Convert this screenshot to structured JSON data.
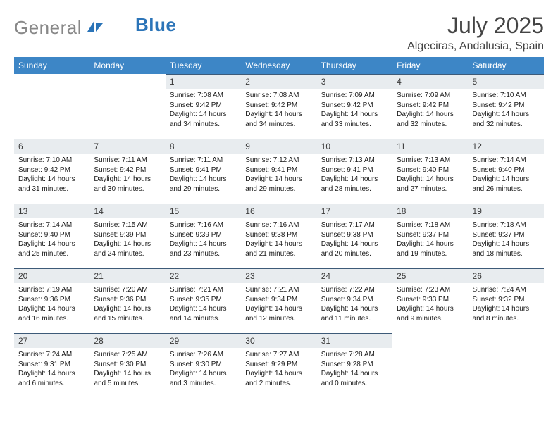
{
  "brand": {
    "gray": "General",
    "blue": "Blue"
  },
  "title": "July 2025",
  "location": "Algeciras, Andalusia, Spain",
  "colors": {
    "header_bg": "#3d86c6",
    "header_text": "#ffffff",
    "daynum_bg": "#e8ecef",
    "daynum_border": "#3d5a78",
    "logo_gray": "#888888",
    "logo_blue": "#2b74b8"
  },
  "weekdays": [
    "Sunday",
    "Monday",
    "Tuesday",
    "Wednesday",
    "Thursday",
    "Friday",
    "Saturday"
  ],
  "weeks": [
    [
      null,
      null,
      {
        "n": "1",
        "sr": "7:08 AM",
        "ss": "9:42 PM",
        "dl": "14 hours and 34 minutes."
      },
      {
        "n": "2",
        "sr": "7:08 AM",
        "ss": "9:42 PM",
        "dl": "14 hours and 34 minutes."
      },
      {
        "n": "3",
        "sr": "7:09 AM",
        "ss": "9:42 PM",
        "dl": "14 hours and 33 minutes."
      },
      {
        "n": "4",
        "sr": "7:09 AM",
        "ss": "9:42 PM",
        "dl": "14 hours and 32 minutes."
      },
      {
        "n": "5",
        "sr": "7:10 AM",
        "ss": "9:42 PM",
        "dl": "14 hours and 32 minutes."
      }
    ],
    [
      {
        "n": "6",
        "sr": "7:10 AM",
        "ss": "9:42 PM",
        "dl": "14 hours and 31 minutes."
      },
      {
        "n": "7",
        "sr": "7:11 AM",
        "ss": "9:42 PM",
        "dl": "14 hours and 30 minutes."
      },
      {
        "n": "8",
        "sr": "7:11 AM",
        "ss": "9:41 PM",
        "dl": "14 hours and 29 minutes."
      },
      {
        "n": "9",
        "sr": "7:12 AM",
        "ss": "9:41 PM",
        "dl": "14 hours and 29 minutes."
      },
      {
        "n": "10",
        "sr": "7:13 AM",
        "ss": "9:41 PM",
        "dl": "14 hours and 28 minutes."
      },
      {
        "n": "11",
        "sr": "7:13 AM",
        "ss": "9:40 PM",
        "dl": "14 hours and 27 minutes."
      },
      {
        "n": "12",
        "sr": "7:14 AM",
        "ss": "9:40 PM",
        "dl": "14 hours and 26 minutes."
      }
    ],
    [
      {
        "n": "13",
        "sr": "7:14 AM",
        "ss": "9:40 PM",
        "dl": "14 hours and 25 minutes."
      },
      {
        "n": "14",
        "sr": "7:15 AM",
        "ss": "9:39 PM",
        "dl": "14 hours and 24 minutes."
      },
      {
        "n": "15",
        "sr": "7:16 AM",
        "ss": "9:39 PM",
        "dl": "14 hours and 23 minutes."
      },
      {
        "n": "16",
        "sr": "7:16 AM",
        "ss": "9:38 PM",
        "dl": "14 hours and 21 minutes."
      },
      {
        "n": "17",
        "sr": "7:17 AM",
        "ss": "9:38 PM",
        "dl": "14 hours and 20 minutes."
      },
      {
        "n": "18",
        "sr": "7:18 AM",
        "ss": "9:37 PM",
        "dl": "14 hours and 19 minutes."
      },
      {
        "n": "19",
        "sr": "7:18 AM",
        "ss": "9:37 PM",
        "dl": "14 hours and 18 minutes."
      }
    ],
    [
      {
        "n": "20",
        "sr": "7:19 AM",
        "ss": "9:36 PM",
        "dl": "14 hours and 16 minutes."
      },
      {
        "n": "21",
        "sr": "7:20 AM",
        "ss": "9:36 PM",
        "dl": "14 hours and 15 minutes."
      },
      {
        "n": "22",
        "sr": "7:21 AM",
        "ss": "9:35 PM",
        "dl": "14 hours and 14 minutes."
      },
      {
        "n": "23",
        "sr": "7:21 AM",
        "ss": "9:34 PM",
        "dl": "14 hours and 12 minutes."
      },
      {
        "n": "24",
        "sr": "7:22 AM",
        "ss": "9:34 PM",
        "dl": "14 hours and 11 minutes."
      },
      {
        "n": "25",
        "sr": "7:23 AM",
        "ss": "9:33 PM",
        "dl": "14 hours and 9 minutes."
      },
      {
        "n": "26",
        "sr": "7:24 AM",
        "ss": "9:32 PM",
        "dl": "14 hours and 8 minutes."
      }
    ],
    [
      {
        "n": "27",
        "sr": "7:24 AM",
        "ss": "9:31 PM",
        "dl": "14 hours and 6 minutes."
      },
      {
        "n": "28",
        "sr": "7:25 AM",
        "ss": "9:30 PM",
        "dl": "14 hours and 5 minutes."
      },
      {
        "n": "29",
        "sr": "7:26 AM",
        "ss": "9:30 PM",
        "dl": "14 hours and 3 minutes."
      },
      {
        "n": "30",
        "sr": "7:27 AM",
        "ss": "9:29 PM",
        "dl": "14 hours and 2 minutes."
      },
      {
        "n": "31",
        "sr": "7:28 AM",
        "ss": "9:28 PM",
        "dl": "14 hours and 0 minutes."
      },
      null,
      null
    ]
  ],
  "labels": {
    "sunrise": "Sunrise:",
    "sunset": "Sunset:",
    "daylight": "Daylight:"
  }
}
